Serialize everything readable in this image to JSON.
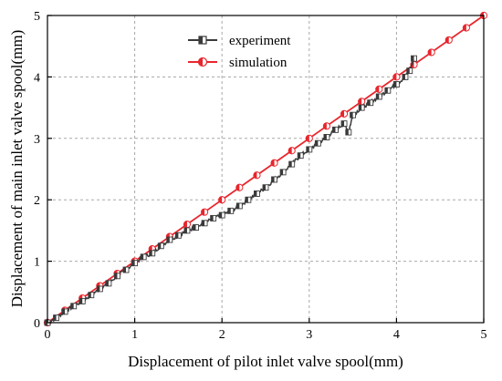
{
  "chart_data": {
    "type": "line",
    "xlabel": "Displacement of pilot inlet valve spool(mm)",
    "ylabel": "Displacement of main inlet valve spool(mm)",
    "xlim": [
      0,
      5
    ],
    "ylim": [
      0,
      5
    ],
    "xticks": [
      "0",
      "1",
      "2",
      "3",
      "4",
      "5"
    ],
    "yticks": [
      "0",
      "1",
      "2",
      "3",
      "4",
      "5"
    ],
    "grid": true,
    "legend_position": "top-center",
    "series": [
      {
        "name": "experiment",
        "color": "#3a3a3a",
        "marker": "half-filled-square",
        "x": [
          0.0,
          0.1,
          0.2,
          0.3,
          0.4,
          0.5,
          0.6,
          0.7,
          0.8,
          0.9,
          1.0,
          1.1,
          1.2,
          1.3,
          1.4,
          1.5,
          1.6,
          1.7,
          1.8,
          1.9,
          2.0,
          2.1,
          2.2,
          2.3,
          2.4,
          2.5,
          2.6,
          2.7,
          2.8,
          2.9,
          3.0,
          3.1,
          3.2,
          3.3,
          3.4,
          3.45,
          3.5,
          3.6,
          3.7,
          3.8,
          3.9,
          4.0,
          4.1,
          4.15,
          4.2
        ],
        "y": [
          0.0,
          0.08,
          0.18,
          0.27,
          0.35,
          0.45,
          0.55,
          0.64,
          0.76,
          0.86,
          0.97,
          1.07,
          1.13,
          1.25,
          1.35,
          1.42,
          1.5,
          1.55,
          1.62,
          1.7,
          1.75,
          1.82,
          1.9,
          2.0,
          2.1,
          2.2,
          2.33,
          2.45,
          2.58,
          2.72,
          2.82,
          2.92,
          3.02,
          3.14,
          3.24,
          3.1,
          3.38,
          3.5,
          3.58,
          3.68,
          3.78,
          3.88,
          4.0,
          4.1,
          4.3
        ]
      },
      {
        "name": "simulation",
        "color": "#e8262d",
        "marker": "half-filled-circle",
        "x": [
          0.0,
          0.2,
          0.4,
          0.6,
          0.8,
          1.0,
          1.2,
          1.4,
          1.6,
          1.8,
          2.0,
          2.2,
          2.4,
          2.6,
          2.8,
          3.0,
          3.2,
          3.4,
          3.6,
          3.8,
          4.0,
          4.2,
          4.4,
          4.6,
          4.8,
          5.0
        ],
        "y": [
          0.0,
          0.2,
          0.4,
          0.6,
          0.8,
          1.0,
          1.2,
          1.4,
          1.6,
          1.8,
          2.0,
          2.2,
          2.4,
          2.6,
          2.8,
          3.0,
          3.2,
          3.4,
          3.6,
          3.8,
          4.0,
          4.2,
          4.4,
          4.6,
          4.8,
          5.0
        ]
      }
    ]
  }
}
